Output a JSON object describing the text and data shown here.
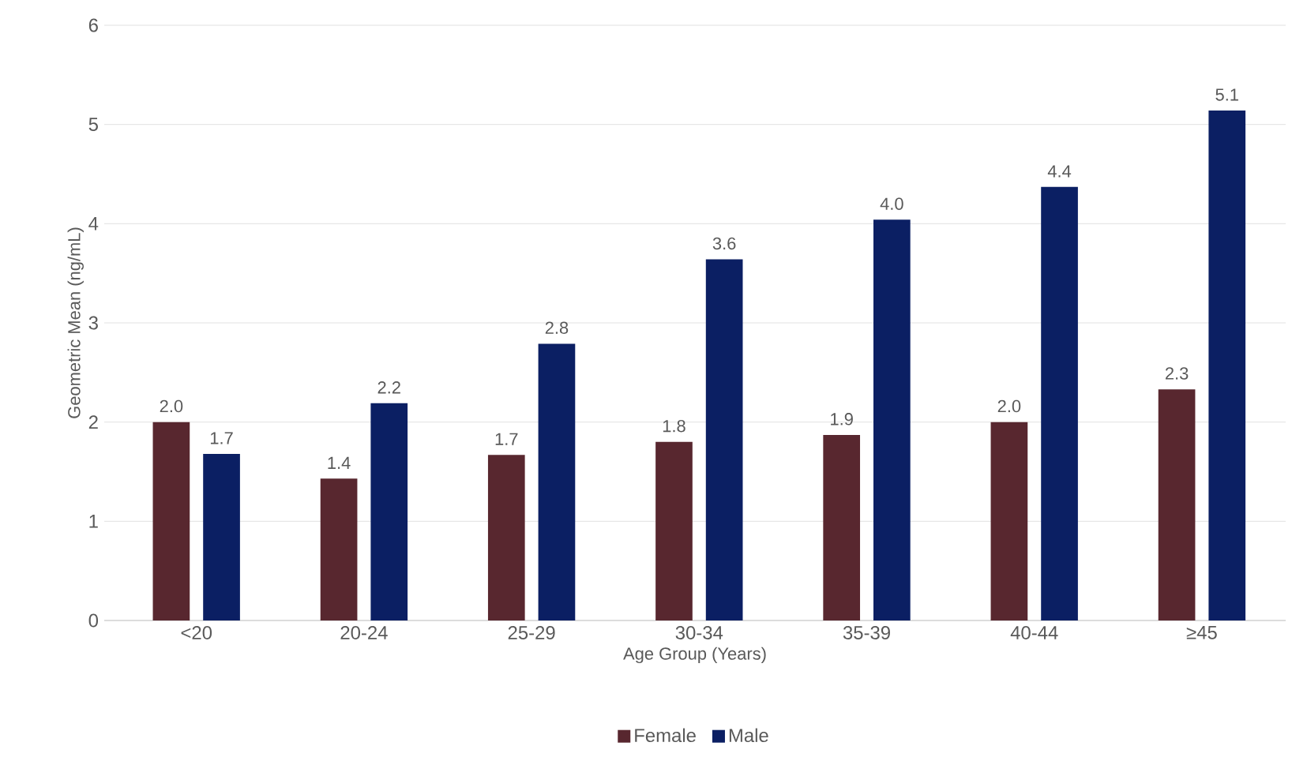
{
  "chart_data": {
    "type": "bar",
    "xlabel": "Age Group (Years)",
    "ylabel": "Geometric Mean (ng/mL)",
    "categories": [
      "<20",
      "20-24",
      "25-29",
      "30-34",
      "35-39",
      "40-44",
      "≥45"
    ],
    "series": [
      {
        "name": "Female",
        "color": "#58272f",
        "values": [
          2.0,
          1.43,
          1.67,
          1.8,
          1.87,
          2.0,
          2.33
        ],
        "value_labels": [
          "2.0",
          "1.4",
          "1.7",
          "1.8",
          "1.9",
          "2.0",
          "2.3"
        ]
      },
      {
        "name": "Male",
        "color": "#0b1f63",
        "values": [
          1.68,
          2.19,
          2.79,
          3.64,
          4.04,
          4.37,
          5.14
        ],
        "value_labels": [
          "1.7",
          "2.2",
          "2.8",
          "3.6",
          "4.0",
          "4.4",
          "5.1"
        ]
      }
    ],
    "ylim": [
      0,
      6
    ],
    "yticks": [
      0,
      1,
      2,
      3,
      4,
      5,
      6
    ],
    "grid": "y",
    "legend": "bottom"
  }
}
